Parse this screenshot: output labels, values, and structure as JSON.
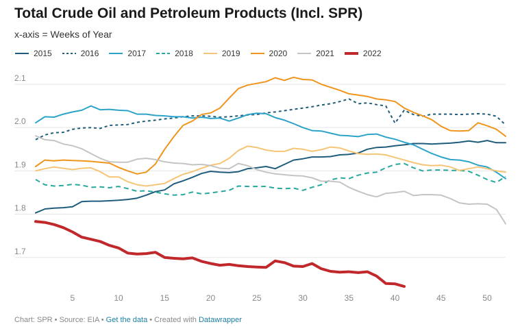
{
  "header": {
    "title": "Total Crude Oil and Petroleum Products (Incl. SPR)",
    "subtitle": "x-axis = Weeks of Year"
  },
  "footer": {
    "prefix": "Chart: SPR • Source: EIA • ",
    "get_data": "Get the data",
    "middle": " • Created with ",
    "datawrapper": "Datawrapper"
  },
  "chart_data": {
    "type": "line",
    "title": "Total Crude Oil and Petroleum Products (Incl. SPR)",
    "xlabel": "x-axis = Weeks of Year",
    "ylabel": "",
    "xlim": [
      1,
      52
    ],
    "ylim": [
      1.63,
      2.13
    ],
    "x_ticks": [
      5,
      10,
      15,
      20,
      25,
      30,
      35,
      40,
      45,
      50
    ],
    "y_ticks": [
      1.7,
      1.8,
      1.9,
      2.0,
      2.1
    ],
    "y_tick_labels": [
      "1.7",
      "1.8",
      "1.9",
      "2.0",
      "2.1"
    ],
    "series": [
      {
        "name": "2015",
        "color": "#1d5c7a",
        "dash": "solid",
        "width": 2,
        "values": [
          1.803,
          1.812,
          1.814,
          1.815,
          1.817,
          1.829,
          1.83,
          1.83,
          1.831,
          1.832,
          1.834,
          1.837,
          1.844,
          1.852,
          1.856,
          1.87,
          1.877,
          1.885,
          1.894,
          1.899,
          1.897,
          1.896,
          1.898,
          1.905,
          1.907,
          1.91,
          1.905,
          1.915,
          1.925,
          1.928,
          1.932,
          1.932,
          1.933,
          1.937,
          1.938,
          1.941,
          1.95,
          1.954,
          1.955,
          1.958,
          1.96,
          1.963,
          1.963,
          1.962,
          1.963,
          1.964,
          1.966,
          1.969,
          1.966,
          1.97,
          1.965,
          1.965
        ]
      },
      {
        "name": "2016",
        "color": "#1d5c7a",
        "dash": "dotted",
        "width": 2,
        "values": [
          1.972,
          1.983,
          1.988,
          1.989,
          1.996,
          1.999,
          2.0,
          1.998,
          2.005,
          2.006,
          2.007,
          2.012,
          2.015,
          2.017,
          2.02,
          2.022,
          2.025,
          2.027,
          2.027,
          2.026,
          2.024,
          2.025,
          2.027,
          2.029,
          2.03,
          2.034,
          2.036,
          2.039,
          2.042,
          2.045,
          2.048,
          2.052,
          2.055,
          2.06,
          2.066,
          2.055,
          2.057,
          2.053,
          2.05,
          2.01,
          2.04,
          2.03,
          2.026,
          2.031,
          2.031,
          2.031,
          2.03,
          2.031,
          2.032,
          2.031,
          2.026,
          2.006
        ]
      },
      {
        "name": "2017",
        "color": "#2ba3c9",
        "dash": "solid",
        "width": 2,
        "values": [
          2.011,
          2.025,
          2.024,
          2.031,
          2.036,
          2.04,
          2.05,
          2.041,
          2.042,
          2.04,
          2.039,
          2.031,
          2.031,
          2.028,
          2.027,
          2.025,
          2.025,
          2.022,
          2.024,
          2.021,
          2.022,
          2.015,
          2.022,
          2.03,
          2.033,
          2.032,
          2.023,
          2.017,
          2.009,
          2.0,
          1.993,
          1.992,
          1.987,
          1.982,
          1.981,
          1.979,
          1.984,
          1.985,
          1.978,
          1.973,
          1.966,
          1.96,
          1.95,
          1.94,
          1.932,
          1.926,
          1.925,
          1.921,
          1.913,
          1.909,
          1.897,
          1.882
        ]
      },
      {
        "name": "2018",
        "color": "#26a89c",
        "dash": "dashed",
        "width": 2,
        "values": [
          1.88,
          1.868,
          1.865,
          1.866,
          1.869,
          1.867,
          1.862,
          1.863,
          1.861,
          1.864,
          1.859,
          1.853,
          1.854,
          1.851,
          1.847,
          1.844,
          1.845,
          1.851,
          1.847,
          1.849,
          1.852,
          1.855,
          1.865,
          1.864,
          1.864,
          1.864,
          1.86,
          1.859,
          1.86,
          1.855,
          1.862,
          1.868,
          1.879,
          1.884,
          1.882,
          1.89,
          1.895,
          1.897,
          1.907,
          1.915,
          1.917,
          1.907,
          1.9,
          1.902,
          1.902,
          1.901,
          1.901,
          1.899,
          1.89,
          1.88,
          1.873,
          1.887
        ]
      },
      {
        "name": "2019",
        "color": "#f5c575",
        "dash": "solid",
        "width": 2,
        "values": [
          1.9,
          1.905,
          1.909,
          1.906,
          1.903,
          1.906,
          1.907,
          1.898,
          1.886,
          1.886,
          1.875,
          1.868,
          1.865,
          1.868,
          1.871,
          1.882,
          1.892,
          1.898,
          1.906,
          1.913,
          1.917,
          1.929,
          1.947,
          1.957,
          1.954,
          1.948,
          1.945,
          1.945,
          1.952,
          1.95,
          1.945,
          1.949,
          1.955,
          1.953,
          1.946,
          1.94,
          1.938,
          1.939,
          1.937,
          1.931,
          1.925,
          1.919,
          1.914,
          1.912,
          1.913,
          1.909,
          1.901,
          1.905,
          1.909,
          1.905,
          1.9,
          1.897
        ]
      },
      {
        "name": "2020",
        "color": "#f0941c",
        "dash": "solid",
        "width": 2,
        "values": [
          1.91,
          1.925,
          1.923,
          1.925,
          1.924,
          1.923,
          1.922,
          1.92,
          1.918,
          1.908,
          1.9,
          1.893,
          1.897,
          1.916,
          1.95,
          1.979,
          2.005,
          2.015,
          2.03,
          2.034,
          2.045,
          2.068,
          2.09,
          2.098,
          2.102,
          2.106,
          2.115,
          2.109,
          2.116,
          2.111,
          2.11,
          2.1,
          2.093,
          2.086,
          2.078,
          2.075,
          2.072,
          2.066,
          2.064,
          2.06,
          2.045,
          2.035,
          2.027,
          2.018,
          2.003,
          1.993,
          1.992,
          1.993,
          2.011,
          2.004,
          1.996,
          1.98
        ]
      },
      {
        "name": "2021",
        "color": "#c4c4c4",
        "dash": "solid",
        "width": 2,
        "values": [
          1.981,
          1.972,
          1.97,
          1.962,
          1.958,
          1.951,
          1.94,
          1.929,
          1.921,
          1.92,
          1.92,
          1.927,
          1.929,
          1.926,
          1.921,
          1.918,
          1.917,
          1.914,
          1.915,
          1.912,
          1.906,
          1.905,
          1.917,
          1.912,
          1.903,
          1.897,
          1.893,
          1.891,
          1.889,
          1.888,
          1.884,
          1.876,
          1.876,
          1.874,
          1.862,
          1.853,
          1.845,
          1.84,
          1.848,
          1.85,
          1.853,
          1.843,
          1.845,
          1.845,
          1.844,
          1.836,
          1.826,
          1.823,
          1.824,
          1.823,
          1.811,
          1.778
        ]
      },
      {
        "name": "2022",
        "color": "#c0282b",
        "dash": "solid",
        "width": 4,
        "values": [
          1.783,
          1.781,
          1.776,
          1.769,
          1.759,
          1.747,
          1.742,
          1.737,
          1.728,
          1.722,
          1.71,
          1.708,
          1.709,
          1.712,
          1.7,
          1.698,
          1.697,
          1.699,
          1.691,
          1.686,
          1.682,
          1.684,
          1.681,
          1.679,
          1.678,
          1.677,
          1.692,
          1.688,
          1.68,
          1.679,
          1.686,
          1.674,
          1.668,
          1.666,
          1.667,
          1.665,
          1.667,
          1.657,
          1.64,
          1.639,
          1.633
        ]
      }
    ]
  }
}
